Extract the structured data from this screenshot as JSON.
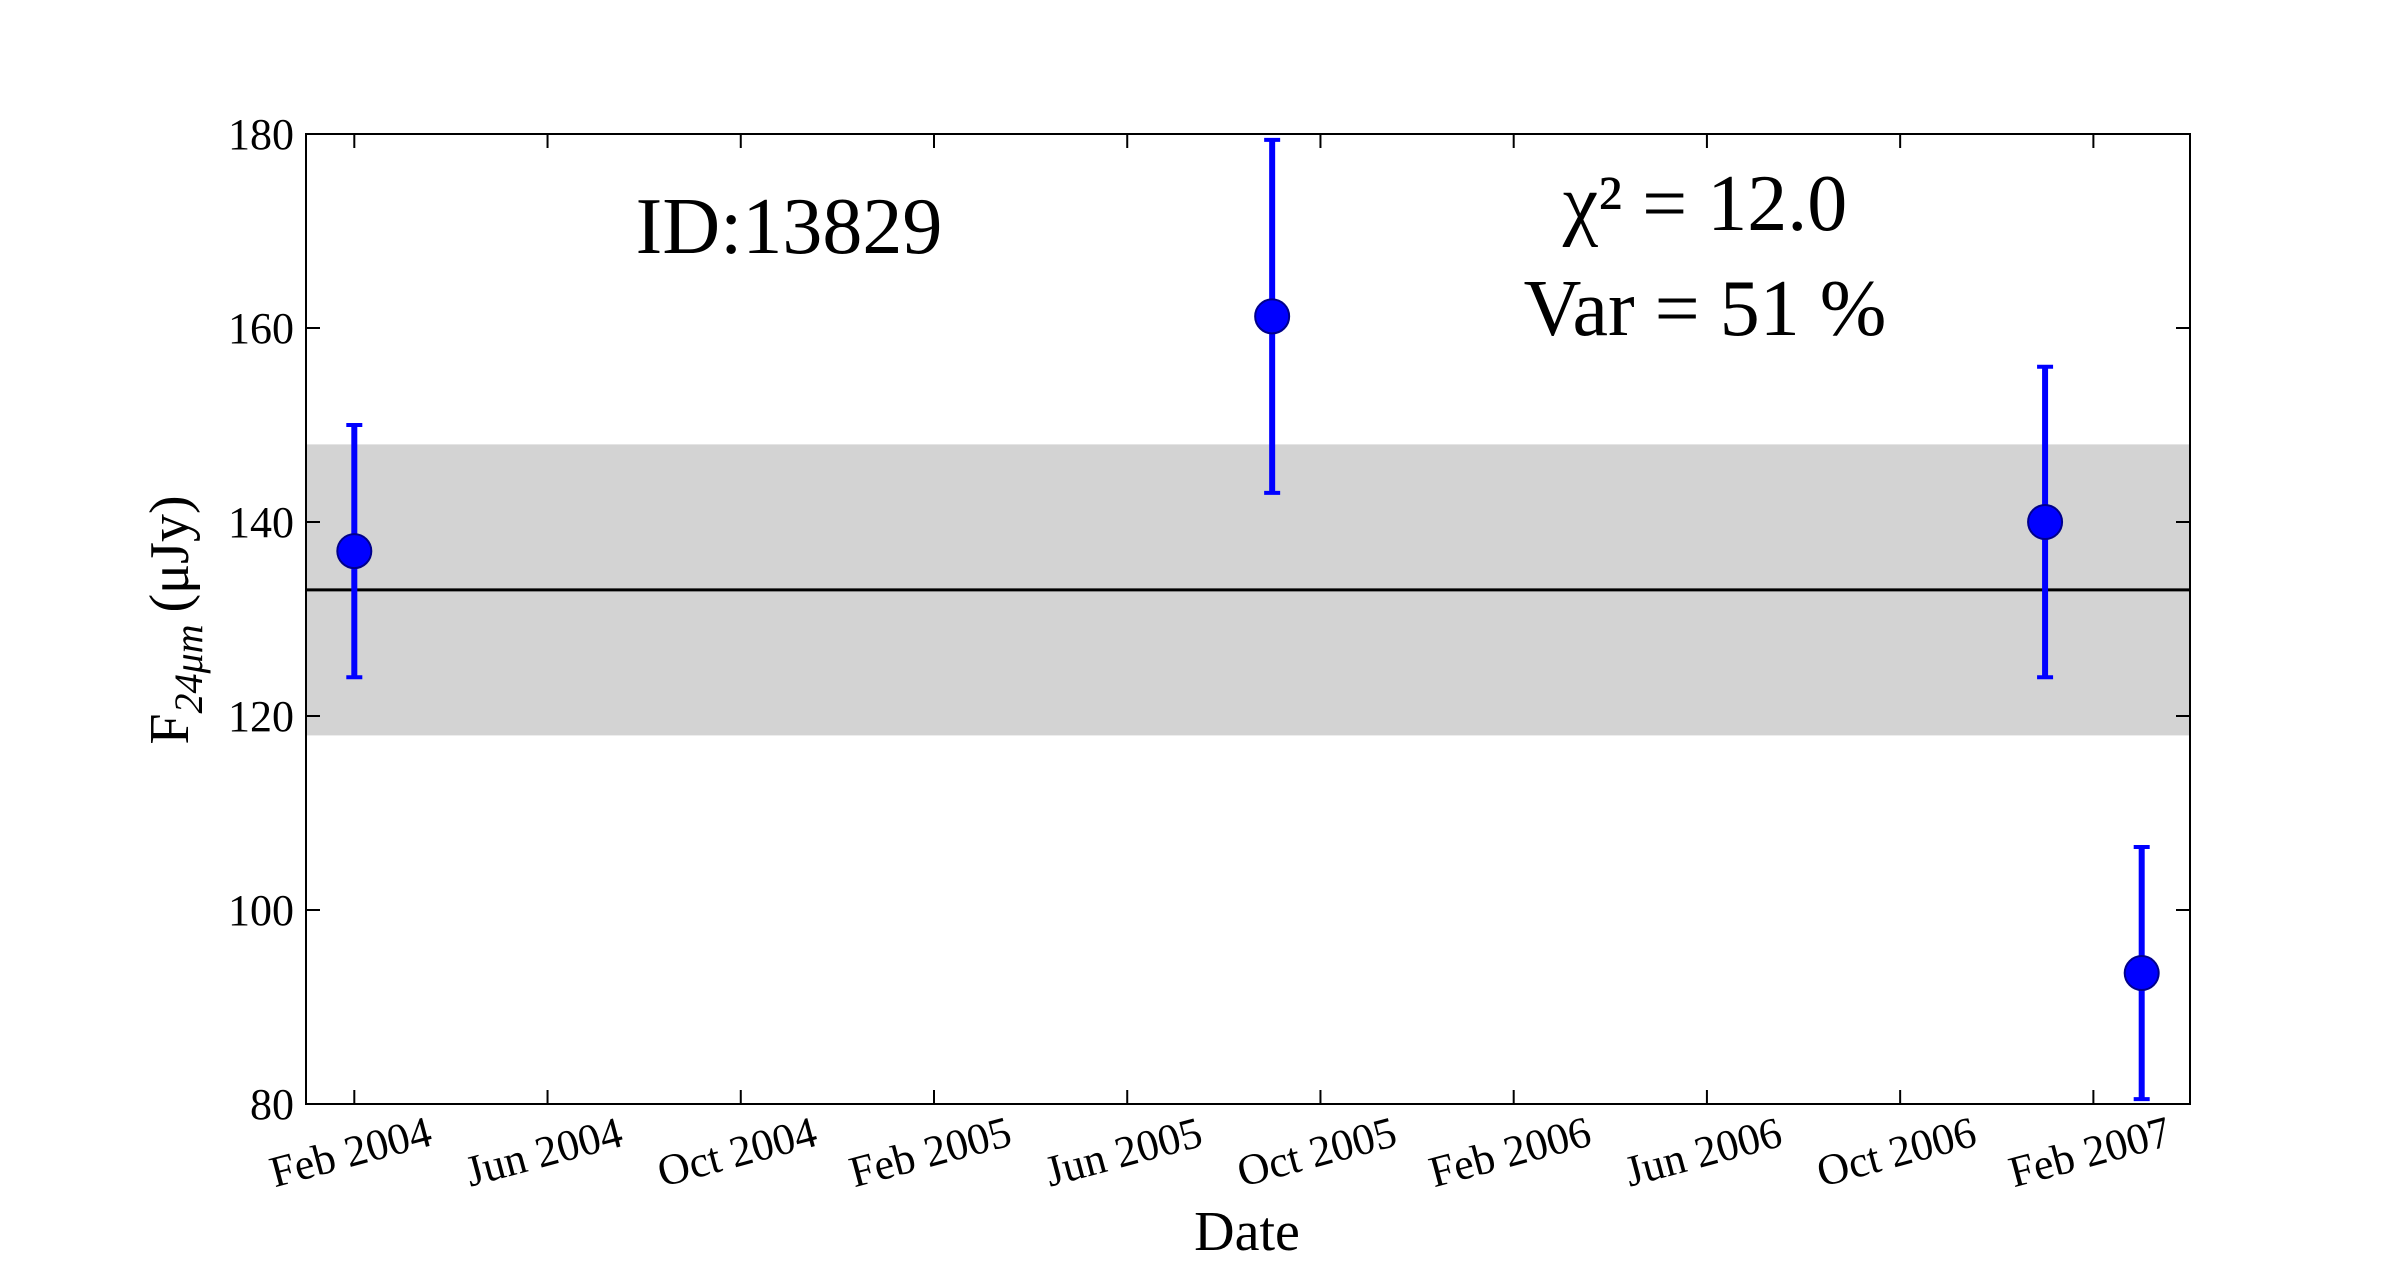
{
  "chart_data": {
    "type": "scatter",
    "x_label": "Date",
    "y_label": {
      "main": "F",
      "sub": "24μm",
      "unit": "(μJy)"
    },
    "annotations": {
      "id": "ID:13829",
      "chi2": "χ² = 12.0",
      "var": "Var = 51 %"
    },
    "x": [
      "2004-02",
      "2005-09",
      "2007-01",
      "2007-03"
    ],
    "series": [
      {
        "color": "#0000ff",
        "values": [
          137,
          161.2,
          140,
          93.5
        ],
        "errors": [
          13,
          18.2,
          16,
          13
        ]
      }
    ],
    "mean": 133,
    "band": [
      118,
      148
    ],
    "band_color": "#d3d3d3",
    "xlim": [
      "2004-01",
      "2007-04"
    ],
    "xticks": [
      {
        "value": "2004-02",
        "label": "Feb 2004"
      },
      {
        "value": "2004-06",
        "label": "Jun 2004"
      },
      {
        "value": "2004-10",
        "label": "Oct 2004"
      },
      {
        "value": "2005-02",
        "label": "Feb 2005"
      },
      {
        "value": "2005-06",
        "label": "Jun 2005"
      },
      {
        "value": "2005-10",
        "label": "Oct 2005"
      },
      {
        "value": "2006-02",
        "label": "Feb 2006"
      },
      {
        "value": "2006-06",
        "label": "Jun 2006"
      },
      {
        "value": "2006-10",
        "label": "Oct 2006"
      },
      {
        "value": "2007-02",
        "label": "Feb 2007"
      }
    ],
    "ylim": [
      80,
      180
    ],
    "yticks": [
      80,
      100,
      120,
      140,
      160,
      180
    ]
  }
}
